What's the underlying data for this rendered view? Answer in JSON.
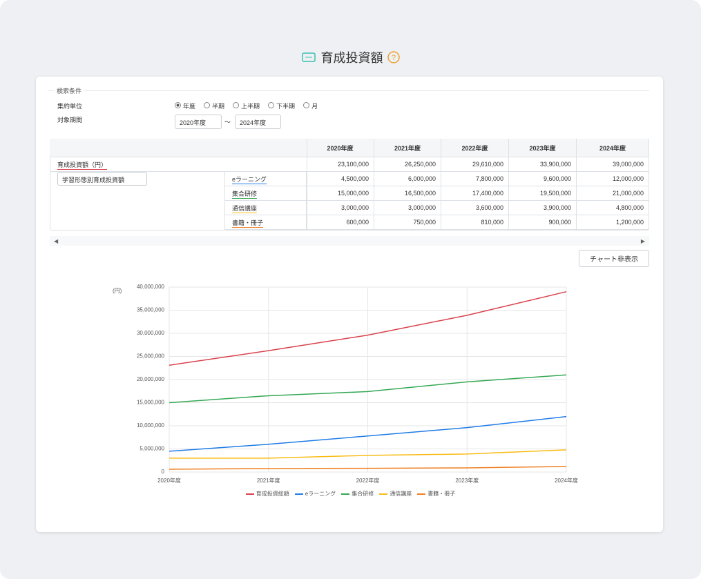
{
  "header": {
    "title": "育成投資額"
  },
  "search": {
    "legend": "検索条件",
    "unit_label": "集約単位",
    "unit_options": [
      "年度",
      "半期",
      "上半期",
      "下半期",
      "月"
    ],
    "period_label": "対象期間",
    "period_from": "2020年度",
    "period_sep": "～",
    "period_to": "2024年度"
  },
  "table": {
    "columns": [
      "2020年度",
      "2021年度",
      "2022年度",
      "2023年度",
      "2024年度"
    ],
    "total_label": "育成投資額（円）",
    "total_values": [
      "23,100,000",
      "26,250,000",
      "29,610,000",
      "33,900,000",
      "39,000,000"
    ],
    "breakdown_select": "学習形態別育成投資額",
    "rows": [
      {
        "label": "eラーニング",
        "values": [
          "4,500,000",
          "6,000,000",
          "7,800,000",
          "9,600,000",
          "12,000,000"
        ]
      },
      {
        "label": "集合研修",
        "values": [
          "15,000,000",
          "16,500,000",
          "17,400,000",
          "19,500,000",
          "21,000,000"
        ]
      },
      {
        "label": "通信講座",
        "values": [
          "3,000,000",
          "3,000,000",
          "3,600,000",
          "3,900,000",
          "4,800,000"
        ]
      },
      {
        "label": "書籍・冊子",
        "values": [
          "600,000",
          "750,000",
          "810,000",
          "900,000",
          "1,200,000"
        ]
      }
    ]
  },
  "chart_toggle": "チャート非表示",
  "chart_data": {
    "type": "line",
    "y_unit_label": "(円)",
    "categories": [
      "2020年度",
      "2021年度",
      "2022年度",
      "2023年度",
      "2024年度"
    ],
    "series": [
      {
        "name": "育成投資総額",
        "color": "#d9404a",
        "values": [
          23100000,
          26250000,
          29610000,
          33900000,
          39000000
        ]
      },
      {
        "name": "eラーニング",
        "color": "#1e7be6",
        "values": [
          4500000,
          6000000,
          7800000,
          9600000,
          12000000
        ]
      },
      {
        "name": "集合研修",
        "color": "#34a853",
        "values": [
          15000000,
          16500000,
          17400000,
          19500000,
          21000000
        ]
      },
      {
        "name": "通信講座",
        "color": "#f9bb12",
        "values": [
          3000000,
          3000000,
          3600000,
          3900000,
          4800000
        ]
      },
      {
        "name": "書籍・冊子",
        "color": "#f07f22",
        "values": [
          600000,
          750000,
          810000,
          900000,
          1200000
        ]
      }
    ],
    "ylim": [
      0,
      40000000
    ],
    "yticks": [
      {
        "value": 0,
        "label": "0"
      },
      {
        "value": 5000000,
        "label": "5,000,000"
      },
      {
        "value": 10000000,
        "label": "10,000,000"
      },
      {
        "value": 15000000,
        "label": "15,000,000"
      },
      {
        "value": 20000000,
        "label": "20,000,000"
      },
      {
        "value": 25000000,
        "label": "25,000,000"
      },
      {
        "value": 30000000,
        "label": "30,000,000"
      },
      {
        "value": 35000000,
        "label": "35,000,000"
      },
      {
        "value": 40000000,
        "label": "40,000,000"
      }
    ],
    "grid": true,
    "legend": "bottom"
  }
}
